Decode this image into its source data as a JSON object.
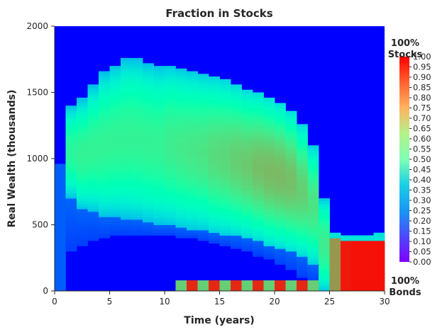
{
  "chart_data": {
    "type": "heatmap",
    "title": "Fraction in Stocks",
    "xlabel": "Time (years)",
    "ylabel": "Real Wealth (thousands)",
    "xlim": [
      0,
      30
    ],
    "ylim": [
      0,
      2000
    ],
    "x_ticks": [
      0,
      5,
      10,
      15,
      20,
      25,
      30
    ],
    "y_ticks": [
      0,
      500,
      1000,
      1500,
      2000
    ],
    "x_tick_labels": [
      "0",
      "5",
      "10",
      "15",
      "20",
      "25",
      "30"
    ],
    "y_tick_labels": [
      "0",
      "500",
      "1000",
      "1500",
      "2000"
    ],
    "grid": false,
    "colormap": "rainbow",
    "colorbar": {
      "range": [
        0,
        1
      ],
      "ticks": [
        0.0,
        0.05,
        0.1,
        0.15,
        0.2,
        0.25,
        0.3,
        0.35,
        0.4,
        0.45,
        0.5,
        0.55,
        0.6,
        0.65,
        0.7,
        0.75,
        0.8,
        0.85,
        0.9,
        0.95,
        1.0
      ],
      "tick_labels": [
        "0.00",
        "0.05",
        "0.10",
        "0.15",
        "0.20",
        "0.25",
        "0.30",
        "0.35",
        "0.40",
        "0.45",
        "0.50",
        "0.55",
        "0.60",
        "0.65",
        "0.70",
        "0.75",
        "0.80",
        "0.85",
        "0.90",
        "0.95",
        "1.00"
      ],
      "top_label_line1": "100%",
      "top_label_line2": "Stocks",
      "bottom_label_line1": "100%",
      "bottom_label_line2": "Bonds"
    },
    "time_columns": [
      0,
      1,
      2,
      3,
      4,
      5,
      6,
      7,
      8,
      9,
      10,
      11,
      12,
      13,
      14,
      15,
      16,
      17,
      18,
      19,
      20,
      21,
      22,
      23,
      24,
      25,
      26,
      27,
      28,
      29
    ],
    "bands": [
      {
        "t": 0,
        "ylo": 0,
        "yhi": 960,
        "peak": 0.12,
        "lo_edge": 0,
        "hi_edge": 960
      },
      {
        "t": 1,
        "ylo": 300,
        "yhi": 1400,
        "peak": 0.58,
        "lo_edge": 700,
        "hi_edge": 1400
      },
      {
        "t": 2,
        "ylo": 350,
        "yhi": 1450,
        "peak": 0.6,
        "lo_edge": 620,
        "hi_edge": 1450
      },
      {
        "t": 3,
        "ylo": 380,
        "yhi": 1550,
        "peak": 0.6,
        "lo_edge": 600,
        "hi_edge": 1550
      },
      {
        "t": 4,
        "ylo": 400,
        "yhi": 1650,
        "peak": 0.6,
        "lo_edge": 560,
        "hi_edge": 1650
      },
      {
        "t": 5,
        "ylo": 420,
        "yhi": 1700,
        "peak": 0.6,
        "lo_edge": 560,
        "hi_edge": 1700
      },
      {
        "t": 6,
        "ylo": 420,
        "yhi": 1750,
        "peak": 0.6,
        "lo_edge": 550,
        "hi_edge": 1750
      },
      {
        "t": 7,
        "ylo": 420,
        "yhi": 1750,
        "peak": 0.6,
        "lo_edge": 540,
        "hi_edge": 1750
      },
      {
        "t": 8,
        "ylo": 420,
        "yhi": 1720,
        "peak": 0.6,
        "lo_edge": 520,
        "hi_edge": 1720
      },
      {
        "t": 9,
        "ylo": 420,
        "yhi": 1700,
        "peak": 0.6,
        "lo_edge": 500,
        "hi_edge": 1700
      },
      {
        "t": 10,
        "ylo": 420,
        "yhi": 1700,
        "peak": 0.62,
        "lo_edge": 500,
        "hi_edge": 1700
      },
      {
        "t": 11,
        "ylo": 400,
        "yhi": 1680,
        "peak": 0.63,
        "lo_edge": 480,
        "hi_edge": 1680
      },
      {
        "t": 12,
        "ylo": 400,
        "yhi": 1660,
        "peak": 0.64,
        "lo_edge": 470,
        "hi_edge": 1660
      },
      {
        "t": 13,
        "ylo": 380,
        "yhi": 1640,
        "peak": 0.65,
        "lo_edge": 460,
        "hi_edge": 1640
      },
      {
        "t": 14,
        "ylo": 360,
        "yhi": 1620,
        "peak": 0.67,
        "lo_edge": 440,
        "hi_edge": 1620
      },
      {
        "t": 15,
        "ylo": 340,
        "yhi": 1600,
        "peak": 0.68,
        "lo_edge": 430,
        "hi_edge": 1600
      },
      {
        "t": 16,
        "ylo": 320,
        "yhi": 1560,
        "peak": 0.7,
        "lo_edge": 420,
        "hi_edge": 1560
      },
      {
        "t": 17,
        "ylo": 300,
        "yhi": 1520,
        "peak": 0.71,
        "lo_edge": 400,
        "hi_edge": 1520
      },
      {
        "t": 18,
        "ylo": 270,
        "yhi": 1500,
        "peak": 0.73,
        "lo_edge": 380,
        "hi_edge": 1500
      },
      {
        "t": 19,
        "ylo": 240,
        "yhi": 1460,
        "peak": 0.74,
        "lo_edge": 350,
        "hi_edge": 1460
      },
      {
        "t": 20,
        "ylo": 200,
        "yhi": 1420,
        "peak": 0.74,
        "lo_edge": 330,
        "hi_edge": 1420
      },
      {
        "t": 21,
        "ylo": 160,
        "yhi": 1360,
        "peak": 0.73,
        "lo_edge": 300,
        "hi_edge": 1360
      },
      {
        "t": 22,
        "ylo": 110,
        "yhi": 1260,
        "peak": 0.7,
        "lo_edge": 260,
        "hi_edge": 1260
      },
      {
        "t": 23,
        "ylo": 60,
        "yhi": 1100,
        "peak": 0.65,
        "lo_edge": 200,
        "hi_edge": 1100
      },
      {
        "t": 24,
        "ylo": 0,
        "yhi": 700,
        "peak": 0.62,
        "lo_edge": 0,
        "hi_edge": 700
      },
      {
        "t": 25,
        "ylo": 0,
        "yhi": 440,
        "peak": 0.8,
        "lo_edge": 0,
        "hi_edge": 440
      },
      {
        "t": 26,
        "ylo": 0,
        "yhi": 420,
        "peak": 0.97,
        "lo_edge": 0,
        "hi_edge": 420
      },
      {
        "t": 27,
        "ylo": 0,
        "yhi": 420,
        "peak": 0.98,
        "lo_edge": 0,
        "hi_edge": 420
      },
      {
        "t": 28,
        "ylo": 0,
        "yhi": 420,
        "peak": 0.98,
        "lo_edge": 0,
        "hi_edge": 420
      },
      {
        "t": 29,
        "ylo": 0,
        "yhi": 430,
        "peak": 0.98,
        "lo_edge": 0,
        "hi_edge": 430
      }
    ],
    "bottom_strip": {
      "from_t": 11,
      "to_t": 24,
      "yhi": 80,
      "value": 0.95
    }
  }
}
